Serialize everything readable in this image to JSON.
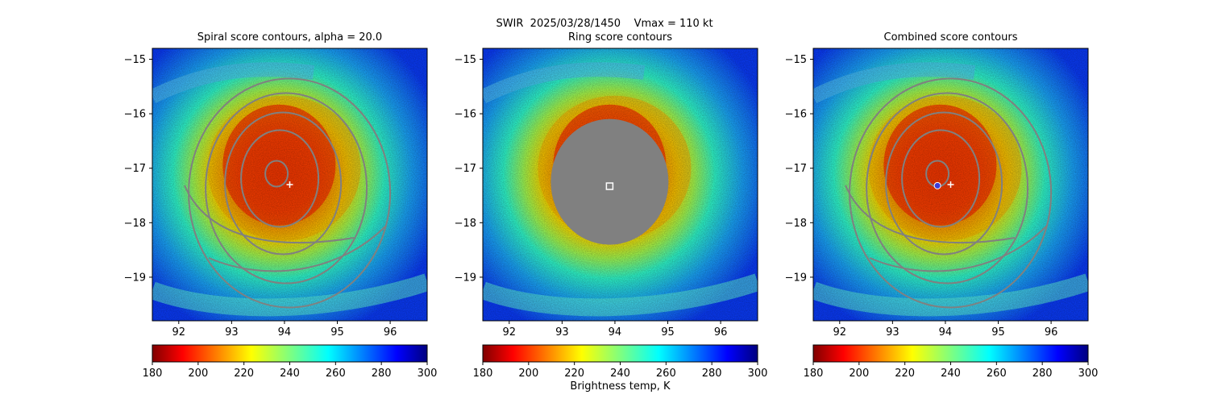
{
  "suptitle_line1": "SWIR  2025/03/28/1450    Vmax = 110 kt",
  "colorbar_label": "Brightness temp, K",
  "colors": {
    "contour": "#808080",
    "mask": "#808080",
    "center_marker_plus": "#ffffff",
    "center_marker_circle": "#3b3bd8"
  },
  "chart_data": [
    {
      "type": "heatmap",
      "title": "Spiral score contours, alpha = 20.0",
      "xticks": [
        "92",
        "93",
        "94",
        "95",
        "96"
      ],
      "yticks": [
        "−15",
        "−16",
        "−17",
        "−18",
        "−19"
      ],
      "xlim": [
        91.5,
        96.7
      ],
      "ylim": [
        -19.8,
        -14.8
      ],
      "colorbar_ticks": [
        "180",
        "200",
        "220",
        "240",
        "260",
        "280",
        "300"
      ],
      "colorbar_range": [
        180,
        300
      ],
      "overlay": "spiral contours",
      "marker": {
        "type": "plus",
        "x": 94.1,
        "y": -17.3
      }
    },
    {
      "type": "heatmap",
      "title": "Ring score contours",
      "xticks": [
        "92",
        "93",
        "94",
        "95",
        "96"
      ],
      "yticks": [
        "−15",
        "−16",
        "−17",
        "−18",
        "−19"
      ],
      "xlim": [
        91.5,
        96.7
      ],
      "ylim": [
        -19.8,
        -14.8
      ],
      "colorbar_ticks": [
        "180",
        "200",
        "220",
        "240",
        "260",
        "280",
        "300"
      ],
      "colorbar_range": [
        180,
        300
      ],
      "overlay": "masked ring region",
      "marker": {
        "type": "square",
        "x": 93.9,
        "y": -17.33
      }
    },
    {
      "type": "heatmap",
      "title": "Combined score contours",
      "xticks": [
        "92",
        "93",
        "94",
        "95",
        "96"
      ],
      "yticks": [
        "−15",
        "−16",
        "−17",
        "−18",
        "−19"
      ],
      "xlim": [
        91.5,
        96.7
      ],
      "ylim": [
        -19.8,
        -14.8
      ],
      "colorbar_ticks": [
        "180",
        "200",
        "220",
        "240",
        "260",
        "280",
        "300"
      ],
      "colorbar_range": [
        180,
        300
      ],
      "overlay": "combined contours",
      "marker": {
        "type": "plus",
        "x": 94.1,
        "y": -17.3
      },
      "marker2": {
        "type": "circle",
        "x": 93.85,
        "y": -17.32
      }
    }
  ]
}
